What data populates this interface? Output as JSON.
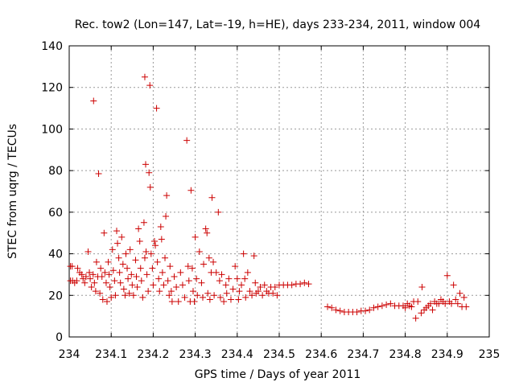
{
  "chart_data": {
    "type": "scatter",
    "title": "Rec. tow2 (Lon=147, Lat=-19, h=HE), days 233-234, 2011, window 004",
    "xlabel": "GPS time / Days of year 2011",
    "ylabel": "STEC from uqrg / TECUs",
    "xlim": [
      234,
      235
    ],
    "ylim": [
      0,
      140
    ],
    "x_ticks": [
      234,
      234.1,
      234.2,
      234.3,
      234.4,
      234.5,
      234.6,
      234.7,
      234.8,
      234.9,
      235
    ],
    "x_tick_labels": [
      "234",
      "234.1",
      "234.2",
      "234.3",
      "234.4",
      "234.5",
      "234.6",
      "234.7",
      "234.8",
      "234.9",
      "235"
    ],
    "y_ticks": [
      0,
      20,
      40,
      60,
      80,
      100,
      120,
      140
    ],
    "y_tick_labels": [
      "0",
      "20",
      "40",
      "60",
      "80",
      "100",
      "120",
      "140"
    ],
    "grid": true,
    "marker": "+",
    "color": "#cc0000",
    "points": [
      [
        234.003,
        34
      ],
      [
        234.007,
        34
      ],
      [
        234.003,
        27
      ],
      [
        234.008,
        27
      ],
      [
        234.013,
        26
      ],
      [
        234.018,
        27
      ],
      [
        234.02,
        33
      ],
      [
        234.025,
        31
      ],
      [
        234.03,
        30
      ],
      [
        234.033,
        28
      ],
      [
        234.037,
        26
      ],
      [
        234.04,
        29
      ],
      [
        234.045,
        41
      ],
      [
        234.048,
        31
      ],
      [
        234.05,
        28
      ],
      [
        234.053,
        24
      ],
      [
        234.057,
        30
      ],
      [
        234.06,
        26
      ],
      [
        234.058,
        113.5
      ],
      [
        234.063,
        22
      ],
      [
        234.065,
        36
      ],
      [
        234.068,
        29
      ],
      [
        234.07,
        78.5
      ],
      [
        234.073,
        21
      ],
      [
        234.075,
        33
      ],
      [
        234.078,
        29
      ],
      [
        234.08,
        18
      ],
      [
        234.083,
        50
      ],
      [
        234.085,
        31
      ],
      [
        234.088,
        26
      ],
      [
        234.09,
        17
      ],
      [
        234.093,
        36
      ],
      [
        234.095,
        30
      ],
      [
        234.097,
        24
      ],
      [
        234.1,
        19
      ],
      [
        234.103,
        42
      ],
      [
        234.105,
        32
      ],
      [
        234.108,
        27
      ],
      [
        234.11,
        20
      ],
      [
        234.113,
        51
      ],
      [
        234.115,
        45
      ],
      [
        234.118,
        38
      ],
      [
        234.12,
        31
      ],
      [
        234.122,
        26
      ],
      [
        234.125,
        48
      ],
      [
        234.128,
        35
      ],
      [
        234.13,
        23
      ],
      [
        234.133,
        20
      ],
      [
        234.135,
        40
      ],
      [
        234.138,
        33
      ],
      [
        234.14,
        28
      ],
      [
        234.143,
        21
      ],
      [
        234.145,
        42
      ],
      [
        234.148,
        30
      ],
      [
        234.15,
        25
      ],
      [
        234.153,
        20
      ],
      [
        234.158,
        37
      ],
      [
        234.16,
        29
      ],
      [
        234.162,
        24
      ],
      [
        234.165,
        52
      ],
      [
        234.168,
        46
      ],
      [
        234.17,
        33
      ],
      [
        234.172,
        27
      ],
      [
        234.175,
        19
      ],
      [
        234.178,
        55
      ],
      [
        234.18,
        38
      ],
      [
        234.18,
        125
      ],
      [
        234.183,
        41
      ],
      [
        234.182,
        83
      ],
      [
        234.185,
        30
      ],
      [
        234.188,
        22
      ],
      [
        234.19,
        79
      ],
      [
        234.192,
        121
      ],
      [
        234.193,
        72
      ],
      [
        234.195,
        40
      ],
      [
        234.198,
        33
      ],
      [
        234.2,
        25
      ],
      [
        234.203,
        46
      ],
      [
        234.205,
        44
      ],
      [
        234.208,
        110
      ],
      [
        234.21,
        36
      ],
      [
        234.213,
        28
      ],
      [
        234.215,
        22
      ],
      [
        234.218,
        53
      ],
      [
        234.22,
        47
      ],
      [
        234.222,
        31
      ],
      [
        234.225,
        25
      ],
      [
        234.228,
        38
      ],
      [
        234.23,
        58
      ],
      [
        234.232,
        68
      ],
      [
        234.235,
        27
      ],
      [
        234.238,
        20
      ],
      [
        234.24,
        34
      ],
      [
        234.243,
        22
      ],
      [
        234.245,
        17
      ],
      [
        234.25,
        29
      ],
      [
        234.255,
        24
      ],
      [
        234.26,
        17
      ],
      [
        234.265,
        31
      ],
      [
        234.27,
        25
      ],
      [
        234.275,
        19
      ],
      [
        234.28,
        94.5
      ],
      [
        234.283,
        34
      ],
      [
        234.285,
        27
      ],
      [
        234.288,
        17
      ],
      [
        234.29,
        70.5
      ],
      [
        234.293,
        33
      ],
      [
        234.295,
        22
      ],
      [
        234.298,
        17
      ],
      [
        234.3,
        48
      ],
      [
        234.303,
        28
      ],
      [
        234.305,
        20
      ],
      [
        234.31,
        41
      ],
      [
        234.315,
        26
      ],
      [
        234.318,
        19
      ],
      [
        234.32,
        35
      ],
      [
        234.325,
        52
      ],
      [
        234.328,
        50
      ],
      [
        234.33,
        21
      ],
      [
        234.333,
        38
      ],
      [
        234.335,
        18
      ],
      [
        234.338,
        31
      ],
      [
        234.34,
        67
      ],
      [
        234.343,
        36
      ],
      [
        234.345,
        20
      ],
      [
        234.35,
        31
      ],
      [
        234.355,
        60
      ],
      [
        234.358,
        27
      ],
      [
        234.36,
        19
      ],
      [
        234.363,
        30
      ],
      [
        234.368,
        17
      ],
      [
        234.373,
        25
      ],
      [
        234.375,
        21
      ],
      [
        234.38,
        28
      ],
      [
        234.385,
        18
      ],
      [
        234.39,
        23
      ],
      [
        234.395,
        34
      ],
      [
        234.4,
        28
      ],
      [
        234.403,
        18
      ],
      [
        234.405,
        22
      ],
      [
        234.41,
        25
      ],
      [
        234.415,
        40
      ],
      [
        234.418,
        28
      ],
      [
        234.42,
        19
      ],
      [
        234.425,
        31
      ],
      [
        234.43,
        22
      ],
      [
        234.435,
        20
      ],
      [
        234.44,
        39
      ],
      [
        234.443,
        26
      ],
      [
        234.445,
        21
      ],
      [
        234.45,
        22
      ],
      [
        234.455,
        24
      ],
      [
        234.46,
        20
      ],
      [
        234.465,
        25
      ],
      [
        234.47,
        22
      ],
      [
        234.475,
        21
      ],
      [
        234.48,
        24
      ],
      [
        234.485,
        21
      ],
      [
        234.49,
        24
      ],
      [
        234.495,
        20
      ],
      [
        234.5,
        25
      ],
      [
        234.51,
        25
      ],
      [
        234.52,
        25
      ],
      [
        234.53,
        25
      ],
      [
        234.54,
        25.5
      ],
      [
        234.55,
        25.5
      ],
      [
        234.56,
        26
      ],
      [
        234.57,
        25.5
      ],
      [
        234.615,
        14.5
      ],
      [
        234.625,
        14
      ],
      [
        234.635,
        13
      ],
      [
        234.645,
        12.5
      ],
      [
        234.655,
        12
      ],
      [
        234.665,
        12
      ],
      [
        234.675,
        12
      ],
      [
        234.685,
        12
      ],
      [
        234.695,
        12.5
      ],
      [
        234.705,
        12.5
      ],
      [
        234.715,
        13
      ],
      [
        234.725,
        14
      ],
      [
        234.735,
        14.5
      ],
      [
        234.745,
        15
      ],
      [
        234.755,
        15.5
      ],
      [
        234.765,
        16
      ],
      [
        234.775,
        15
      ],
      [
        234.785,
        15
      ],
      [
        234.795,
        15
      ],
      [
        234.8,
        14
      ],
      [
        234.805,
        16
      ],
      [
        234.81,
        15
      ],
      [
        234.815,
        14.5
      ],
      [
        234.82,
        17
      ],
      [
        234.825,
        9
      ],
      [
        234.83,
        17
      ],
      [
        234.838,
        11.5
      ],
      [
        234.84,
        24
      ],
      [
        234.845,
        13
      ],
      [
        234.85,
        14
      ],
      [
        234.855,
        15
      ],
      [
        234.86,
        16
      ],
      [
        234.865,
        13
      ],
      [
        234.87,
        17
      ],
      [
        234.875,
        16
      ],
      [
        234.88,
        16
      ],
      [
        234.885,
        18
      ],
      [
        234.89,
        17
      ],
      [
        234.895,
        16
      ],
      [
        234.9,
        29.5
      ],
      [
        234.905,
        17
      ],
      [
        234.91,
        16
      ],
      [
        234.915,
        25
      ],
      [
        234.92,
        18
      ],
      [
        234.925,
        16
      ],
      [
        234.93,
        21
      ],
      [
        234.935,
        14.5
      ],
      [
        234.94,
        19
      ],
      [
        234.945,
        14.5
      ]
    ]
  }
}
